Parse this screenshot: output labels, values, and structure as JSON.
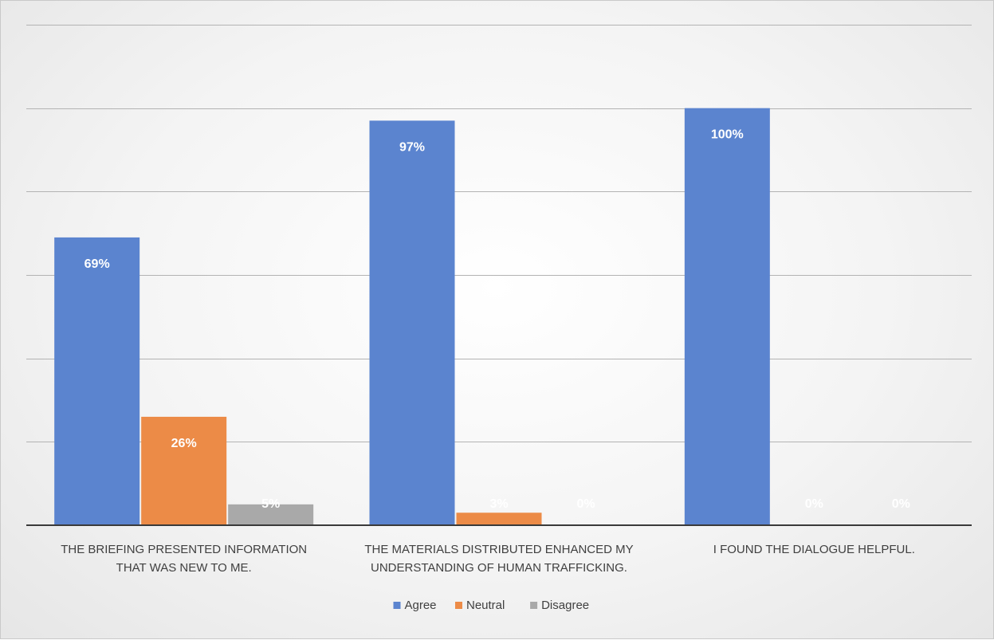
{
  "chart_data": {
    "type": "bar",
    "title": "",
    "xlabel": "",
    "ylabel": "",
    "ylim": [
      0,
      1.2
    ],
    "grid": true,
    "legend_position": "bottom",
    "categories": [
      [
        "THE BRIEFING PRESENTED INFORMATION",
        "THAT WAS NEW TO ME."
      ],
      [
        "THE MATERIALS DISTRIBUTED ENHANCED MY",
        "UNDERSTANDING OF HUMAN TRAFFICKING."
      ],
      [
        "I FOUND THE DIALOGUE HELPFUL."
      ]
    ],
    "series": [
      {
        "name": "Agree",
        "color": "#5b84cf",
        "values": [
          0.69,
          0.97,
          1.0
        ],
        "labels": [
          "69%",
          "97%",
          "100%"
        ]
      },
      {
        "name": "Neutral",
        "color": "#ec8b47",
        "values": [
          0.26,
          0.03,
          0.0
        ],
        "labels": [
          "26%",
          "3%",
          "0%"
        ]
      },
      {
        "name": "Disagree",
        "color": "#a9a9a9",
        "values": [
          0.05,
          0.0,
          0.0
        ],
        "labels": [
          "5%",
          "0%",
          "0%"
        ]
      }
    ]
  }
}
